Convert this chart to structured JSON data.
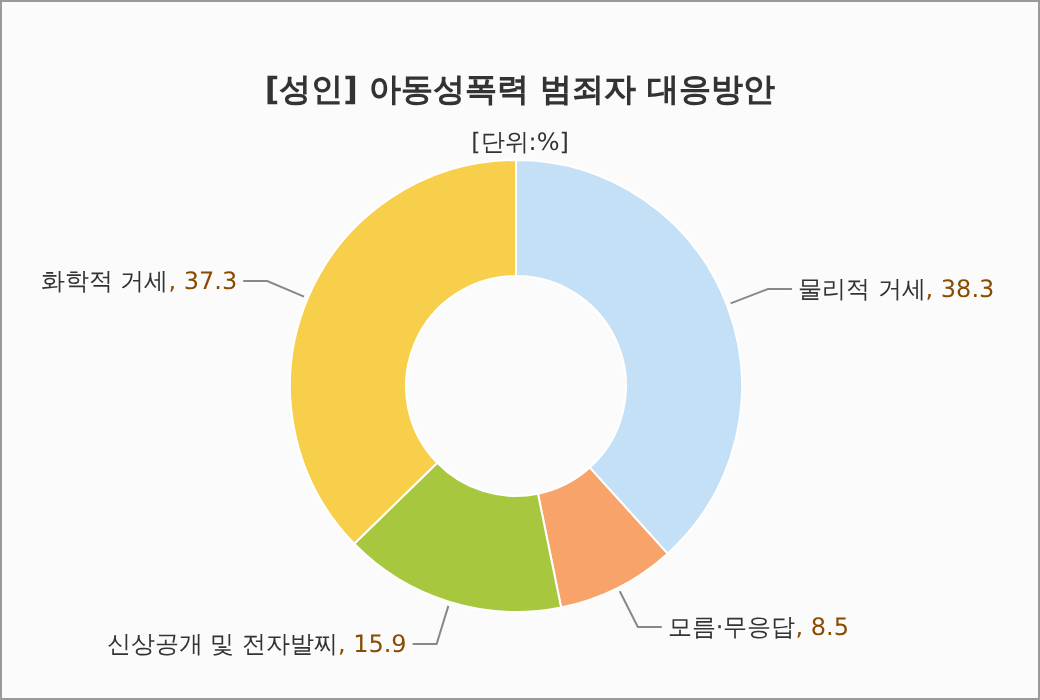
{
  "chart_data": {
    "type": "donut",
    "title": "[성인] 아동성폭력 범죄자 대응방안",
    "subtitle": "[단위:%]",
    "categories": [
      "물리적 거세",
      "모름·무응답",
      "신상공개 및 전자발찌",
      "화학적 거세"
    ],
    "values": [
      38.3,
      8.5,
      15.9,
      37.3
    ],
    "colors": [
      "#c4e0f6",
      "#f8a36a",
      "#a7c83e",
      "#f8cf4a"
    ],
    "value_labels": [
      ", 38.3",
      ", 8.5",
      ", 15.9",
      ", 37.3"
    ]
  }
}
